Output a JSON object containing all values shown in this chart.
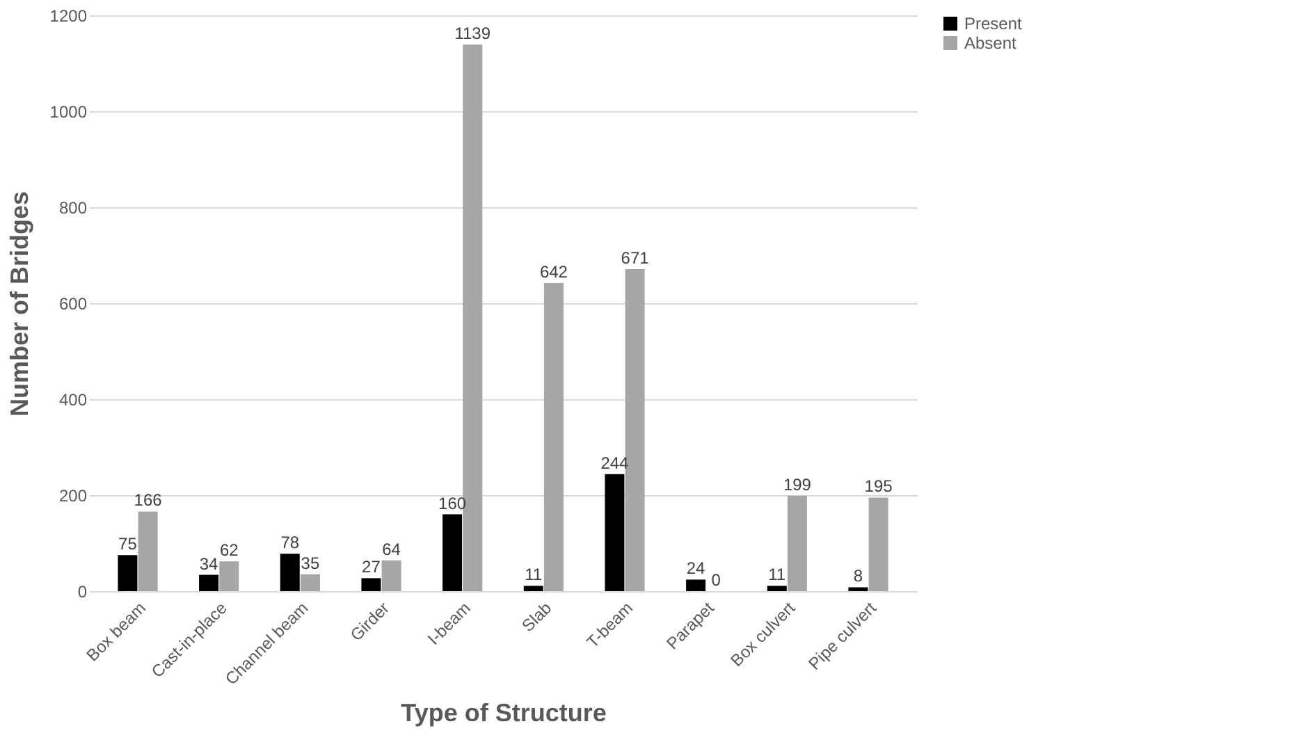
{
  "chart_data": {
    "type": "bar",
    "xlabel": "Type of Structure",
    "ylabel": "Number of Bridges",
    "categories": [
      "Box beam",
      "Cast-in-place",
      "Channel beam",
      "Girder",
      "I-beam",
      "Slab",
      "T-beam",
      "Parapet",
      "Box culvert",
      "Pipe culvert"
    ],
    "series": [
      {
        "name": "Present",
        "color": "#000000",
        "values": [
          75,
          34,
          78,
          27,
          160,
          11,
          244,
          24,
          11,
          8
        ]
      },
      {
        "name": "Absent",
        "color": "#a6a6a6",
        "values": [
          166,
          62,
          35,
          64,
          1139,
          642,
          671,
          0,
          199,
          195
        ]
      }
    ],
    "ylim": [
      0,
      1200
    ],
    "yticks": [
      0,
      200,
      400,
      600,
      800,
      1000,
      1200
    ],
    "grid": "y",
    "legend": "right",
    "data_labels": true
  }
}
